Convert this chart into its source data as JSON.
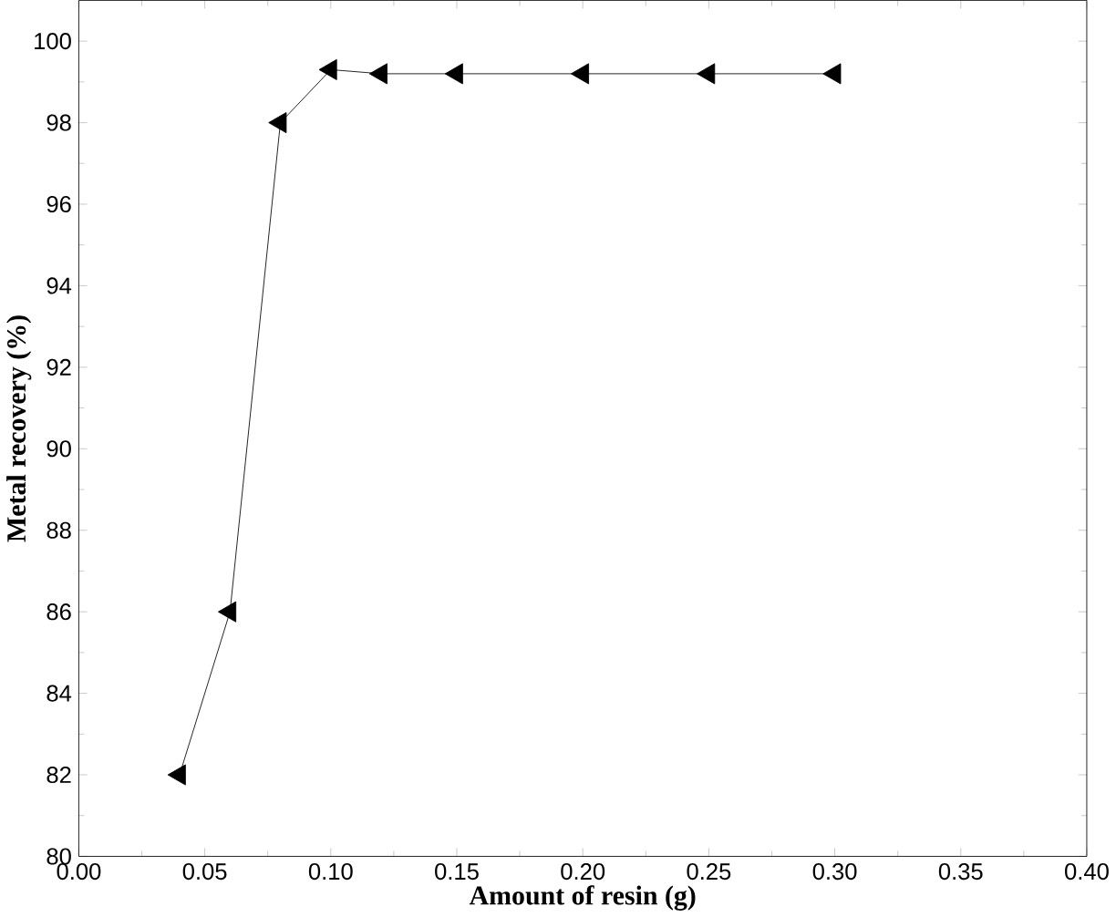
{
  "chart_data": {
    "type": "line",
    "xlabel": "Amount of resin (g)",
    "ylabel": "Metal recovery (%)",
    "x": [
      0.04,
      0.06,
      0.08,
      0.1,
      0.12,
      0.15,
      0.2,
      0.25,
      0.3
    ],
    "series": [
      {
        "color": "#000000",
        "values": [
          82,
          86,
          98,
          99.3,
          99.2,
          99.2,
          99.2,
          99.2,
          99.2
        ]
      }
    ],
    "marker": "triangle",
    "line_style": "solid",
    "xlim": [
      0,
      0.4
    ],
    "ylim": [
      80,
      101
    ],
    "xticks": [
      {
        "value": 0,
        "label": "0.00"
      },
      {
        "value": 0.05,
        "label": "0.05"
      },
      {
        "value": 0.1,
        "label": "0.10"
      },
      {
        "value": 0.15,
        "label": "0.15"
      },
      {
        "value": 0.2,
        "label": "0.20"
      },
      {
        "value": 0.25,
        "label": "0.25"
      },
      {
        "value": 0.3,
        "label": "0.30"
      },
      {
        "value": 0.35,
        "label": "0.35"
      },
      {
        "value": 0.4,
        "label": "0.40"
      }
    ],
    "yticks": [
      80,
      82,
      84,
      86,
      88,
      90,
      92,
      94,
      96,
      98,
      100
    ]
  }
}
